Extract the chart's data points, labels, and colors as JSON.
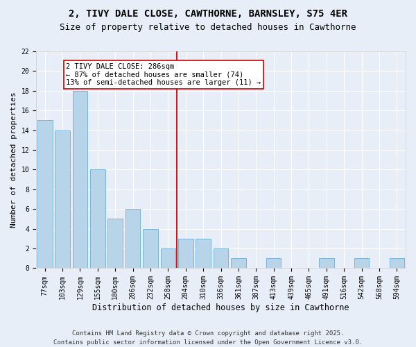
{
  "title1": "2, TIVY DALE CLOSE, CAWTHORNE, BARNSLEY, S75 4ER",
  "title2": "Size of property relative to detached houses in Cawthorne",
  "xlabel": "Distribution of detached houses by size in Cawthorne",
  "ylabel": "Number of detached properties",
  "categories": [
    "77sqm",
    "103sqm",
    "129sqm",
    "155sqm",
    "180sqm",
    "206sqm",
    "232sqm",
    "258sqm",
    "284sqm",
    "310sqm",
    "336sqm",
    "361sqm",
    "387sqm",
    "413sqm",
    "439sqm",
    "465sqm",
    "491sqm",
    "516sqm",
    "542sqm",
    "568sqm",
    "594sqm"
  ],
  "values": [
    15,
    14,
    18,
    10,
    5,
    6,
    4,
    2,
    3,
    3,
    2,
    1,
    0,
    1,
    0,
    0,
    1,
    0,
    1,
    0,
    1
  ],
  "bar_color": "#b8d4e8",
  "bar_edge_color": "#6aaed6",
  "vline_x_idx": 8,
  "vline_color": "#cc0000",
  "annotation_text": "2 TIVY DALE CLOSE: 286sqm\n← 87% of detached houses are smaller (74)\n13% of semi-detached houses are larger (11) →",
  "annotation_box_color": "#ffffff",
  "annotation_box_edge": "#cc0000",
  "ylim": [
    0,
    22
  ],
  "yticks": [
    0,
    2,
    4,
    6,
    8,
    10,
    12,
    14,
    16,
    18,
    20,
    22
  ],
  "bg_color": "#e8eef8",
  "footer_text": "Contains HM Land Registry data © Crown copyright and database right 2025.\nContains public sector information licensed under the Open Government Licence v3.0.",
  "title1_fontsize": 10,
  "title2_fontsize": 9,
  "xlabel_fontsize": 8.5,
  "ylabel_fontsize": 8,
  "tick_fontsize": 7,
  "annotation_fontsize": 7.5,
  "footer_fontsize": 6.5
}
